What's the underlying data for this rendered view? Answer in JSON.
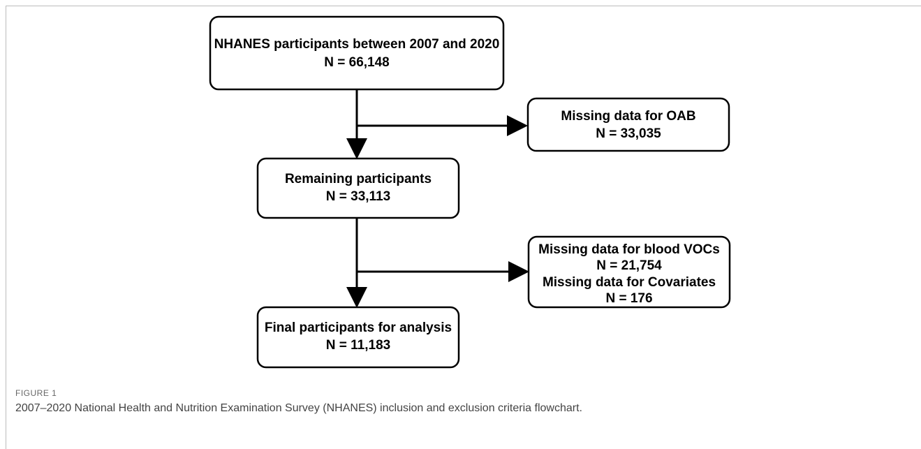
{
  "nodes": [
    {
      "label": "NHANES participants between 2007 and 2020",
      "count": "N = 66,148"
    },
    {
      "label": "Missing data for OAB",
      "count": "N = 33,035"
    },
    {
      "label": "Remaining participants",
      "count": "N = 33,113"
    },
    {
      "label": "Missing data for blood VOCs",
      "count": "N = 21,754",
      "label2": "Missing data for Covariates",
      "count2": "N = 176"
    },
    {
      "label": "Final participants for analysis",
      "count": "N = 11,183"
    }
  ],
  "caption": {
    "label": "FIGURE 1",
    "text": "2007–2020 National Health and Nutrition Examination Survey (NHANES) inclusion and exclusion criteria flowchart."
  }
}
